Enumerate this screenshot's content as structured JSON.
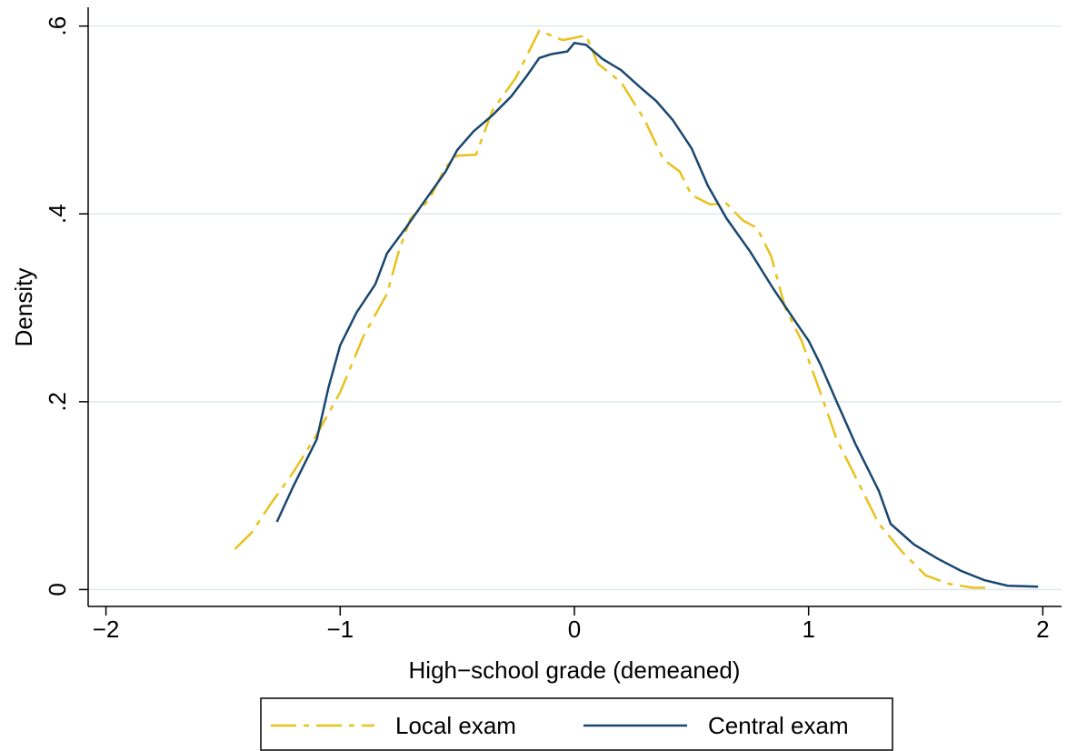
{
  "chart_data": {
    "type": "line",
    "xlabel": "High−school grade (demeaned)",
    "ylabel": "Density",
    "xlim": [
      -2.076,
      2.08
    ],
    "ylim": [
      -0.018,
      0.62
    ],
    "xticks": [
      {
        "value": -2,
        "label": "−2"
      },
      {
        "value": -1,
        "label": "−1"
      },
      0,
      1,
      2
    ],
    "yticks": [
      0,
      {
        "value": 0.2,
        "label": ".2"
      },
      {
        "value": 0.4,
        "label": ".4"
      },
      {
        "value": 0.6,
        "label": ".6"
      }
    ],
    "grid": true,
    "legend": "bottom",
    "series": [
      {
        "name": "Local exam",
        "color": "#e8c21c",
        "dash": true,
        "x": [
          -1.45,
          -1.38,
          -1.3,
          -1.2,
          -1.1,
          -1.0,
          -0.9,
          -0.8,
          -0.75,
          -0.7,
          -0.62,
          -0.55,
          -0.5,
          -0.42,
          -0.35,
          -0.25,
          -0.15,
          -0.05,
          0.05,
          0.1,
          0.2,
          0.3,
          0.38,
          0.45,
          0.5,
          0.58,
          0.65,
          0.72,
          0.78,
          0.84,
          0.9,
          0.97,
          1.05,
          1.12,
          1.22,
          1.3,
          1.4,
          1.5,
          1.6,
          1.7,
          1.78
        ],
        "values": [
          0.043,
          0.06,
          0.09,
          0.125,
          0.165,
          0.21,
          0.27,
          0.315,
          0.36,
          0.395,
          0.415,
          0.45,
          0.462,
          0.463,
          0.51,
          0.545,
          0.595,
          0.585,
          0.59,
          0.56,
          0.54,
          0.5,
          0.458,
          0.445,
          0.42,
          0.41,
          0.411,
          0.393,
          0.385,
          0.355,
          0.3,
          0.265,
          0.21,
          0.16,
          0.11,
          0.07,
          0.04,
          0.015,
          0.006,
          0.002,
          0.002
        ]
      },
      {
        "name": "Central exam",
        "color": "#1a476f",
        "dash": false,
        "x": [
          -1.27,
          -1.2,
          -1.1,
          -1.05,
          -1.0,
          -0.93,
          -0.85,
          -0.8,
          -0.72,
          -0.65,
          -0.55,
          -0.5,
          -0.43,
          -0.35,
          -0.27,
          -0.2,
          -0.15,
          -0.1,
          -0.03,
          0.0,
          0.05,
          0.12,
          0.2,
          0.28,
          0.35,
          0.42,
          0.5,
          0.57,
          0.65,
          0.75,
          0.85,
          0.95,
          1.0,
          1.05,
          1.12,
          1.2,
          1.3,
          1.35,
          1.45,
          1.55,
          1.65,
          1.75,
          1.85,
          1.98
        ],
        "values": [
          0.072,
          0.11,
          0.16,
          0.215,
          0.26,
          0.295,
          0.325,
          0.358,
          0.385,
          0.41,
          0.445,
          0.468,
          0.488,
          0.505,
          0.525,
          0.548,
          0.566,
          0.57,
          0.573,
          0.582,
          0.58,
          0.565,
          0.553,
          0.535,
          0.52,
          0.5,
          0.47,
          0.43,
          0.395,
          0.36,
          0.32,
          0.283,
          0.265,
          0.24,
          0.2,
          0.155,
          0.105,
          0.07,
          0.048,
          0.033,
          0.02,
          0.01,
          0.004,
          0.003
        ]
      }
    ]
  }
}
